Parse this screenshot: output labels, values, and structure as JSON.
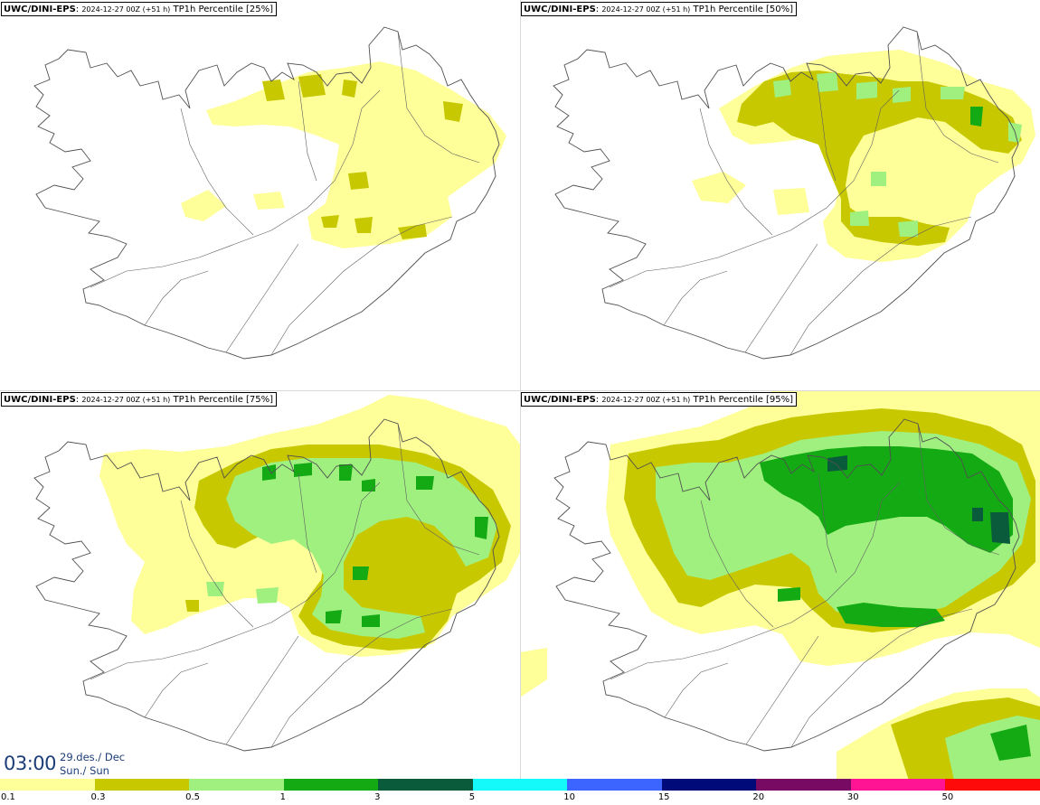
{
  "panels": [
    {
      "model": "UWC/DINI-EPS",
      "run": "2024-12-27 00Z (+51 h)",
      "variable": "TP1h Percentile [25%]"
    },
    {
      "model": "UWC/DINI-EPS",
      "run": "2024-12-27 00Z (+51 h)",
      "variable": "TP1h Percentile [50%]"
    },
    {
      "model": "UWC/DINI-EPS",
      "run": "2024-12-27 00Z (+51 h)",
      "variable": "TP1h Percentile [75%]"
    },
    {
      "model": "UWC/DINI-EPS",
      "run": "2024-12-27 00Z (+51 h)",
      "variable": "TP1h Percentile [95%]"
    }
  ],
  "valid_time": {
    "time": "03:00",
    "date": "29.des./ Dec",
    "day": "Sun./ Sun"
  },
  "legend": {
    "colors": [
      "#ffff99",
      "#c8c800",
      "#a0f080",
      "#14aa14",
      "#0a5a3c",
      "#14fafa",
      "#3c64ff",
      "#000a78",
      "#780a64",
      "#ff1493",
      "#ff0a0a"
    ],
    "ticks": [
      "0.1",
      "0.3",
      "0.5",
      "1",
      "3",
      "5",
      "10",
      "15",
      "20",
      "30",
      "50"
    ]
  },
  "colors": {
    "coast": "#505050",
    "text_time": "#1c3d78"
  }
}
